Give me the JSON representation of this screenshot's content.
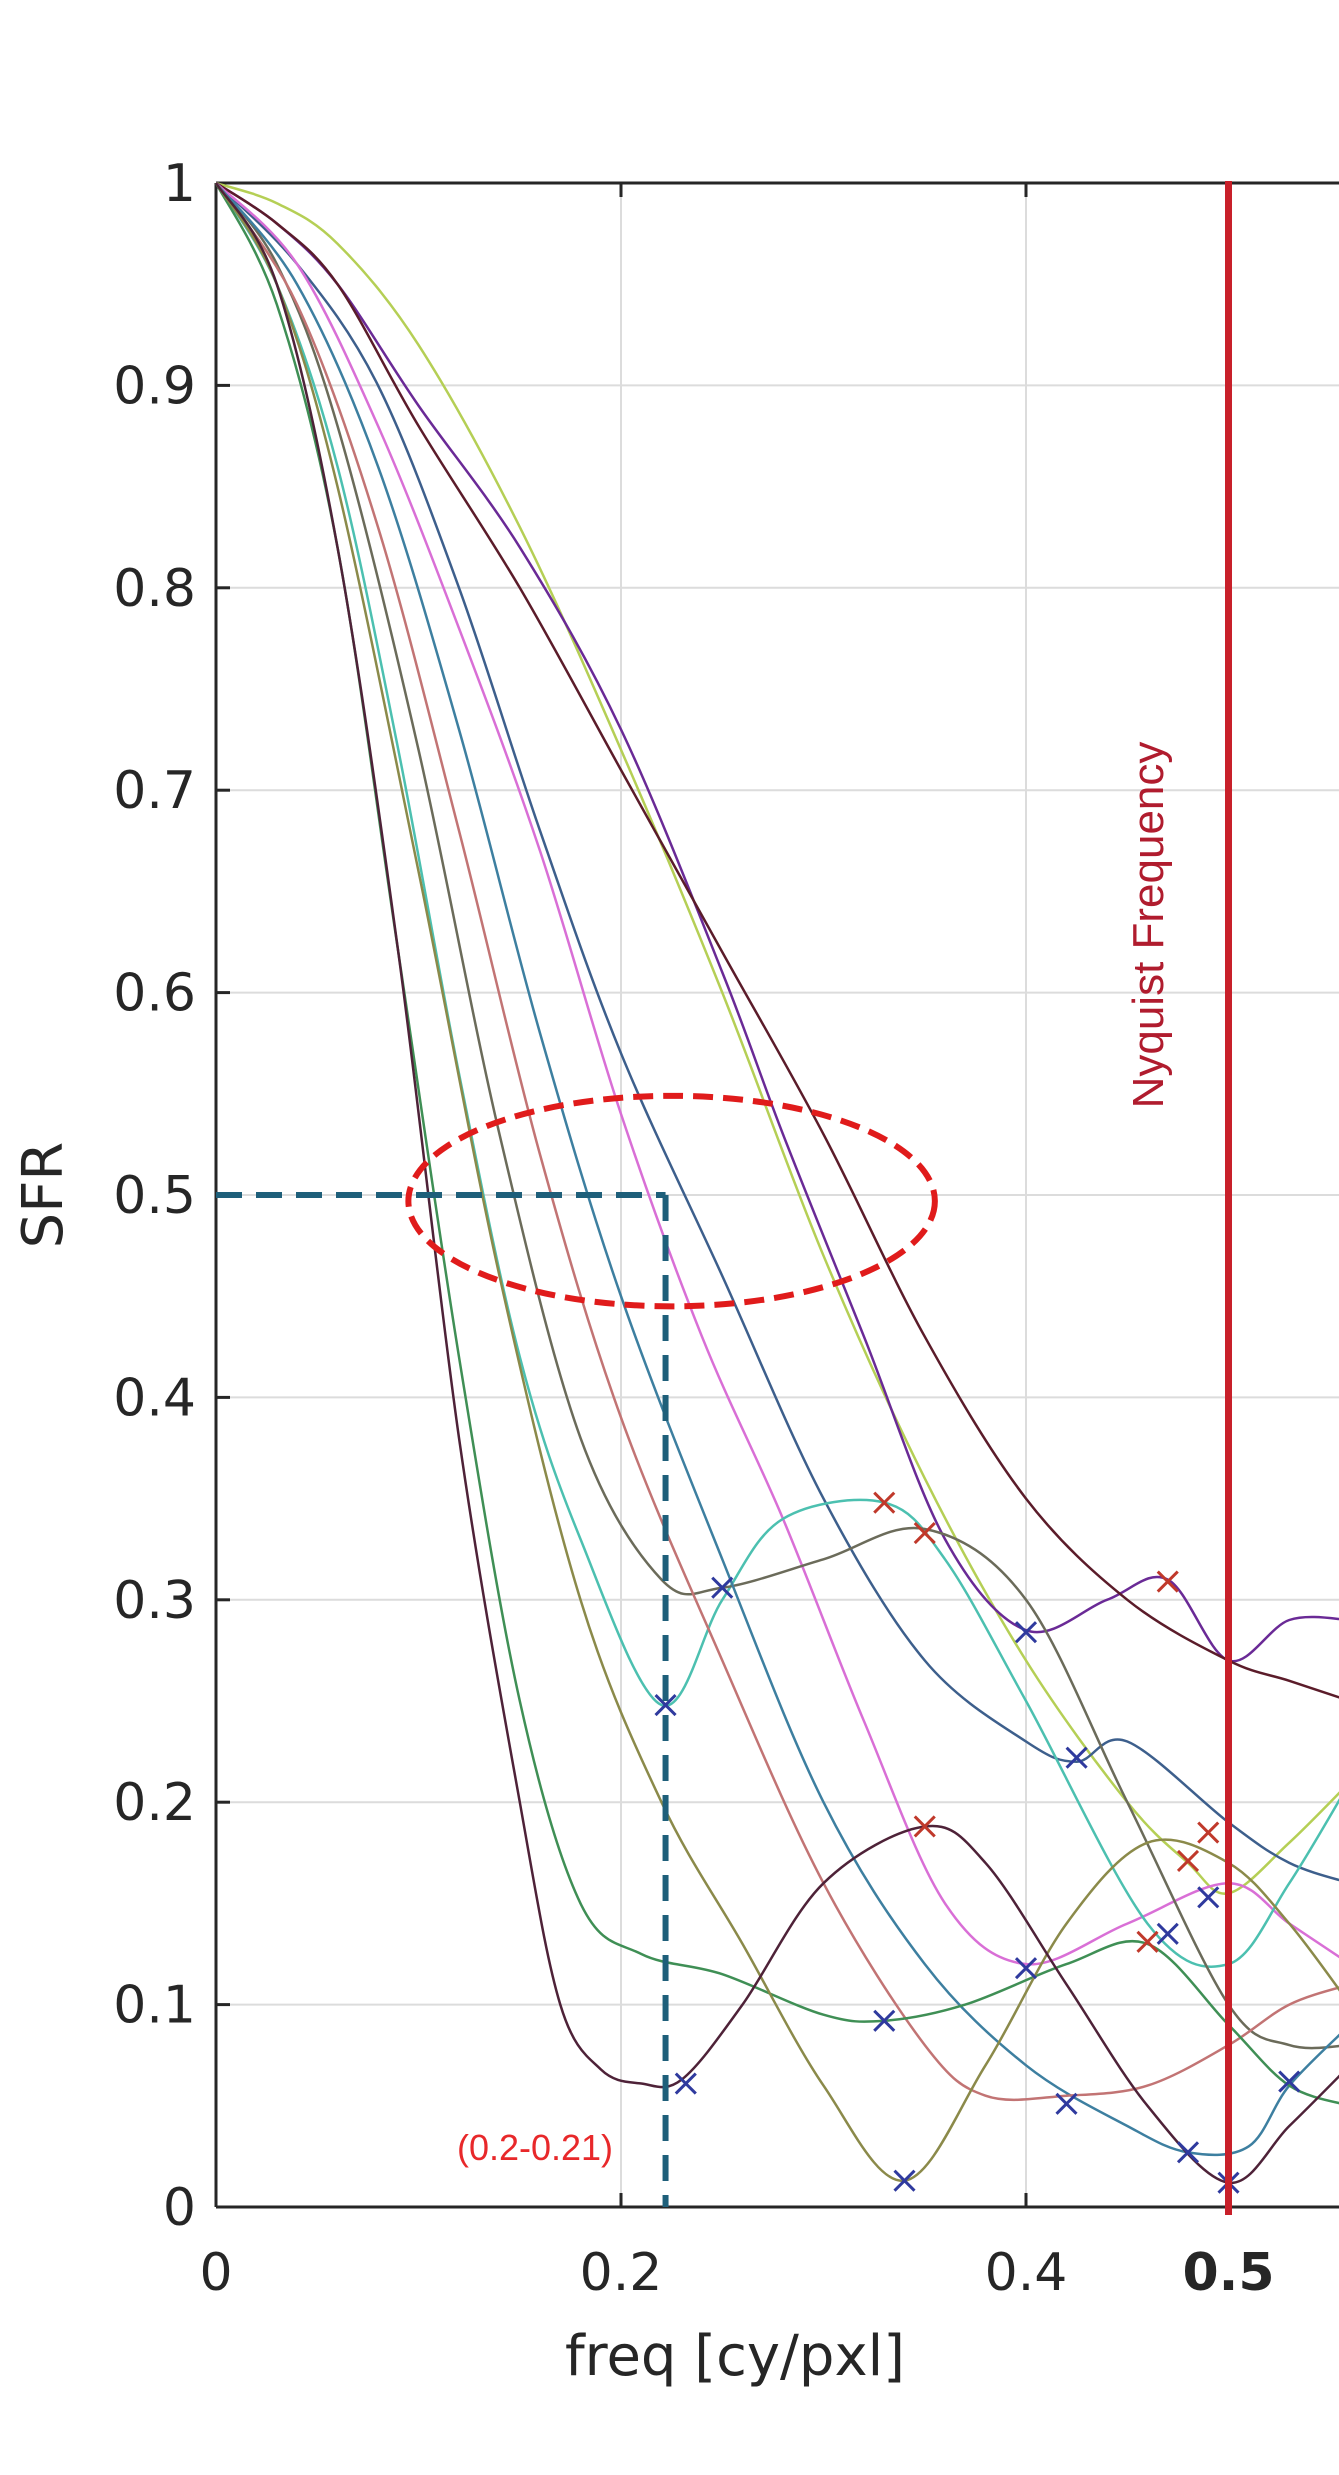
{
  "chart_data": {
    "type": "line",
    "xlabel": "freq [cy/pxl]",
    "ylabel": "SFR",
    "xlim": [
      0,
      0.56
    ],
    "ylim": [
      0,
      1
    ],
    "xticks": [
      {
        "value": 0,
        "label": "0"
      },
      {
        "value": 0.2,
        "label": "0.2"
      },
      {
        "value": 0.4,
        "label": "0.4"
      },
      {
        "value": 0.5,
        "label": "0.5"
      }
    ],
    "yticks": [
      {
        "value": 0,
        "label": "0"
      },
      {
        "value": 0.1,
        "label": "0.1"
      },
      {
        "value": 0.2,
        "label": "0.2"
      },
      {
        "value": 0.3,
        "label": "0.3"
      },
      {
        "value": 0.4,
        "label": "0.4"
      },
      {
        "value": 0.5,
        "label": "0.5"
      },
      {
        "value": 0.6,
        "label": "0.6"
      },
      {
        "value": 0.7,
        "label": "0.7"
      },
      {
        "value": 0.8,
        "label": "0.8"
      },
      {
        "value": 0.9,
        "label": "0.9"
      },
      {
        "value": 1,
        "label": "1"
      }
    ],
    "grid": true,
    "series": [
      {
        "color": "#b5cf55",
        "x": [
          0,
          0.03,
          0.06,
          0.1,
          0.15,
          0.2,
          0.25,
          0.3,
          0.35,
          0.4,
          0.45,
          0.48,
          0.5,
          0.53,
          0.56
        ],
        "y": [
          1,
          0.99,
          0.97,
          0.92,
          0.83,
          0.72,
          0.6,
          0.47,
          0.36,
          0.27,
          0.2,
          0.17,
          0.155,
          0.18,
          0.21
        ]
      },
      {
        "color": "#6a2a96",
        "x": [
          0,
          0.03,
          0.06,
          0.1,
          0.15,
          0.2,
          0.25,
          0.28,
          0.32,
          0.36,
          0.4,
          0.44,
          0.47,
          0.5,
          0.53,
          0.56
        ],
        "y": [
          1,
          0.98,
          0.95,
          0.89,
          0.82,
          0.73,
          0.61,
          0.53,
          0.43,
          0.33,
          0.285,
          0.3,
          0.31,
          0.27,
          0.29,
          0.29
        ]
      },
      {
        "color": "#5b1c2a",
        "x": [
          0,
          0.03,
          0.06,
          0.1,
          0.15,
          0.2,
          0.25,
          0.3,
          0.35,
          0.4,
          0.45,
          0.5,
          0.53,
          0.56
        ],
        "y": [
          1,
          0.98,
          0.95,
          0.88,
          0.8,
          0.71,
          0.62,
          0.53,
          0.43,
          0.35,
          0.3,
          0.27,
          0.26,
          0.25
        ]
      },
      {
        "color": "#3d5f8c",
        "x": [
          0,
          0.04,
          0.08,
          0.12,
          0.16,
          0.2,
          0.25,
          0.3,
          0.35,
          0.4,
          0.425,
          0.45,
          0.5,
          0.53,
          0.56
        ],
        "y": [
          1,
          0.96,
          0.9,
          0.8,
          0.68,
          0.57,
          0.46,
          0.35,
          0.27,
          0.23,
          0.22,
          0.23,
          0.19,
          0.17,
          0.16
        ]
      },
      {
        "color": "#d96fd6",
        "x": [
          0,
          0.04,
          0.08,
          0.12,
          0.16,
          0.2,
          0.24,
          0.28,
          0.32,
          0.36,
          0.4,
          0.45,
          0.5,
          0.53,
          0.56
        ],
        "y": [
          1,
          0.96,
          0.88,
          0.78,
          0.67,
          0.54,
          0.43,
          0.34,
          0.24,
          0.15,
          0.12,
          0.14,
          0.16,
          0.14,
          0.12
        ]
      },
      {
        "color": "#4cc0b0",
        "x": [
          0,
          0.03,
          0.06,
          0.09,
          0.12,
          0.15,
          0.18,
          0.22,
          0.25,
          0.28,
          0.33,
          0.36,
          0.4,
          0.46,
          0.5,
          0.53,
          0.56
        ],
        "y": [
          1,
          0.95,
          0.86,
          0.72,
          0.56,
          0.42,
          0.33,
          0.248,
          0.3,
          0.34,
          0.348,
          0.32,
          0.25,
          0.14,
          0.12,
          0.16,
          0.21
        ]
      },
      {
        "color": "#6b6b5a",
        "x": [
          0,
          0.03,
          0.06,
          0.1,
          0.14,
          0.18,
          0.22,
          0.25,
          0.3,
          0.35,
          0.4,
          0.45,
          0.5,
          0.53,
          0.56
        ],
        "y": [
          1,
          0.96,
          0.88,
          0.72,
          0.53,
          0.38,
          0.31,
          0.306,
          0.32,
          0.335,
          0.3,
          0.2,
          0.1,
          0.08,
          0.08
        ]
      },
      {
        "color": "#3d7fa0",
        "x": [
          0,
          0.04,
          0.08,
          0.12,
          0.16,
          0.2,
          0.25,
          0.3,
          0.35,
          0.4,
          0.45,
          0.48,
          0.51,
          0.53,
          0.56
        ],
        "y": [
          1,
          0.95,
          0.86,
          0.73,
          0.58,
          0.45,
          0.32,
          0.2,
          0.12,
          0.07,
          0.04,
          0.027,
          0.03,
          0.06,
          0.09
        ]
      },
      {
        "color": "#c27474",
        "x": [
          0,
          0.04,
          0.08,
          0.12,
          0.16,
          0.2,
          0.25,
          0.3,
          0.35,
          0.38,
          0.42,
          0.46,
          0.5,
          0.53,
          0.56
        ],
        "y": [
          1,
          0.94,
          0.83,
          0.68,
          0.52,
          0.39,
          0.27,
          0.16,
          0.08,
          0.055,
          0.055,
          0.06,
          0.08,
          0.1,
          0.11
        ]
      },
      {
        "color": "#3f8f55",
        "x": [
          0,
          0.03,
          0.06,
          0.09,
          0.12,
          0.15,
          0.18,
          0.21,
          0.25,
          0.3,
          0.33,
          0.37,
          0.42,
          0.46,
          0.5,
          0.53,
          0.56
        ],
        "y": [
          1,
          0.94,
          0.82,
          0.62,
          0.42,
          0.25,
          0.15,
          0.125,
          0.115,
          0.095,
          0.092,
          0.1,
          0.12,
          0.13,
          0.09,
          0.06,
          0.05
        ]
      },
      {
        "color": "#8b8a4a",
        "x": [
          0,
          0.03,
          0.06,
          0.1,
          0.14,
          0.18,
          0.22,
          0.26,
          0.3,
          0.34,
          0.38,
          0.42,
          0.46,
          0.5,
          0.53,
          0.56
        ],
        "y": [
          1,
          0.95,
          0.85,
          0.66,
          0.46,
          0.3,
          0.2,
          0.13,
          0.06,
          0.013,
          0.07,
          0.14,
          0.18,
          0.17,
          0.14,
          0.1
        ]
      },
      {
        "color": "#4e2238",
        "x": [
          0,
          0.03,
          0.06,
          0.09,
          0.12,
          0.15,
          0.17,
          0.19,
          0.21,
          0.23,
          0.26,
          0.3,
          0.35,
          0.38,
          0.42,
          0.46,
          0.5,
          0.53,
          0.56
        ],
        "y": [
          1,
          0.95,
          0.82,
          0.62,
          0.38,
          0.2,
          0.1,
          0.068,
          0.061,
          0.063,
          0.1,
          0.16,
          0.188,
          0.17,
          0.11,
          0.05,
          0.012,
          0.04,
          0.07
        ]
      }
    ],
    "markers_blue": [
      [
        0.222,
        0.248
      ],
      [
        0.25,
        0.306
      ],
      [
        0.232,
        0.061
      ],
      [
        0.33,
        0.092
      ],
      [
        0.34,
        0.013
      ],
      [
        0.4,
        0.284
      ],
      [
        0.425,
        0.222
      ],
      [
        0.4,
        0.118
      ],
      [
        0.42,
        0.051
      ],
      [
        0.47,
        0.135
      ],
      [
        0.49,
        0.153
      ],
      [
        0.48,
        0.027
      ],
      [
        0.5,
        0.012
      ],
      [
        0.53,
        0.062
      ]
    ],
    "markers_red": [
      [
        0.33,
        0.348
      ],
      [
        0.35,
        0.333
      ],
      [
        0.35,
        0.188
      ],
      [
        0.47,
        0.309
      ],
      [
        0.49,
        0.185
      ],
      [
        0.48,
        0.171
      ],
      [
        0.46,
        0.131
      ]
    ],
    "guide_lines": {
      "y_value": 0.5,
      "x_value": 0.222
    },
    "highlight_ellipse": {
      "cx": 0.225,
      "cy": 0.497,
      "rx": 0.13,
      "ry": 0.052
    },
    "nyquist": {
      "x": 0.5,
      "label": "Nyquist Frequency"
    },
    "range_annotation": "(0.2-0.21)",
    "colors": {
      "nyquist": "#c8202a",
      "guide": "#1e5f7a",
      "ellipse": "#e01b1b",
      "annotation": "#e8282a",
      "marker_blue": "#2f3a9e",
      "marker_red": "#c0392b"
    }
  }
}
